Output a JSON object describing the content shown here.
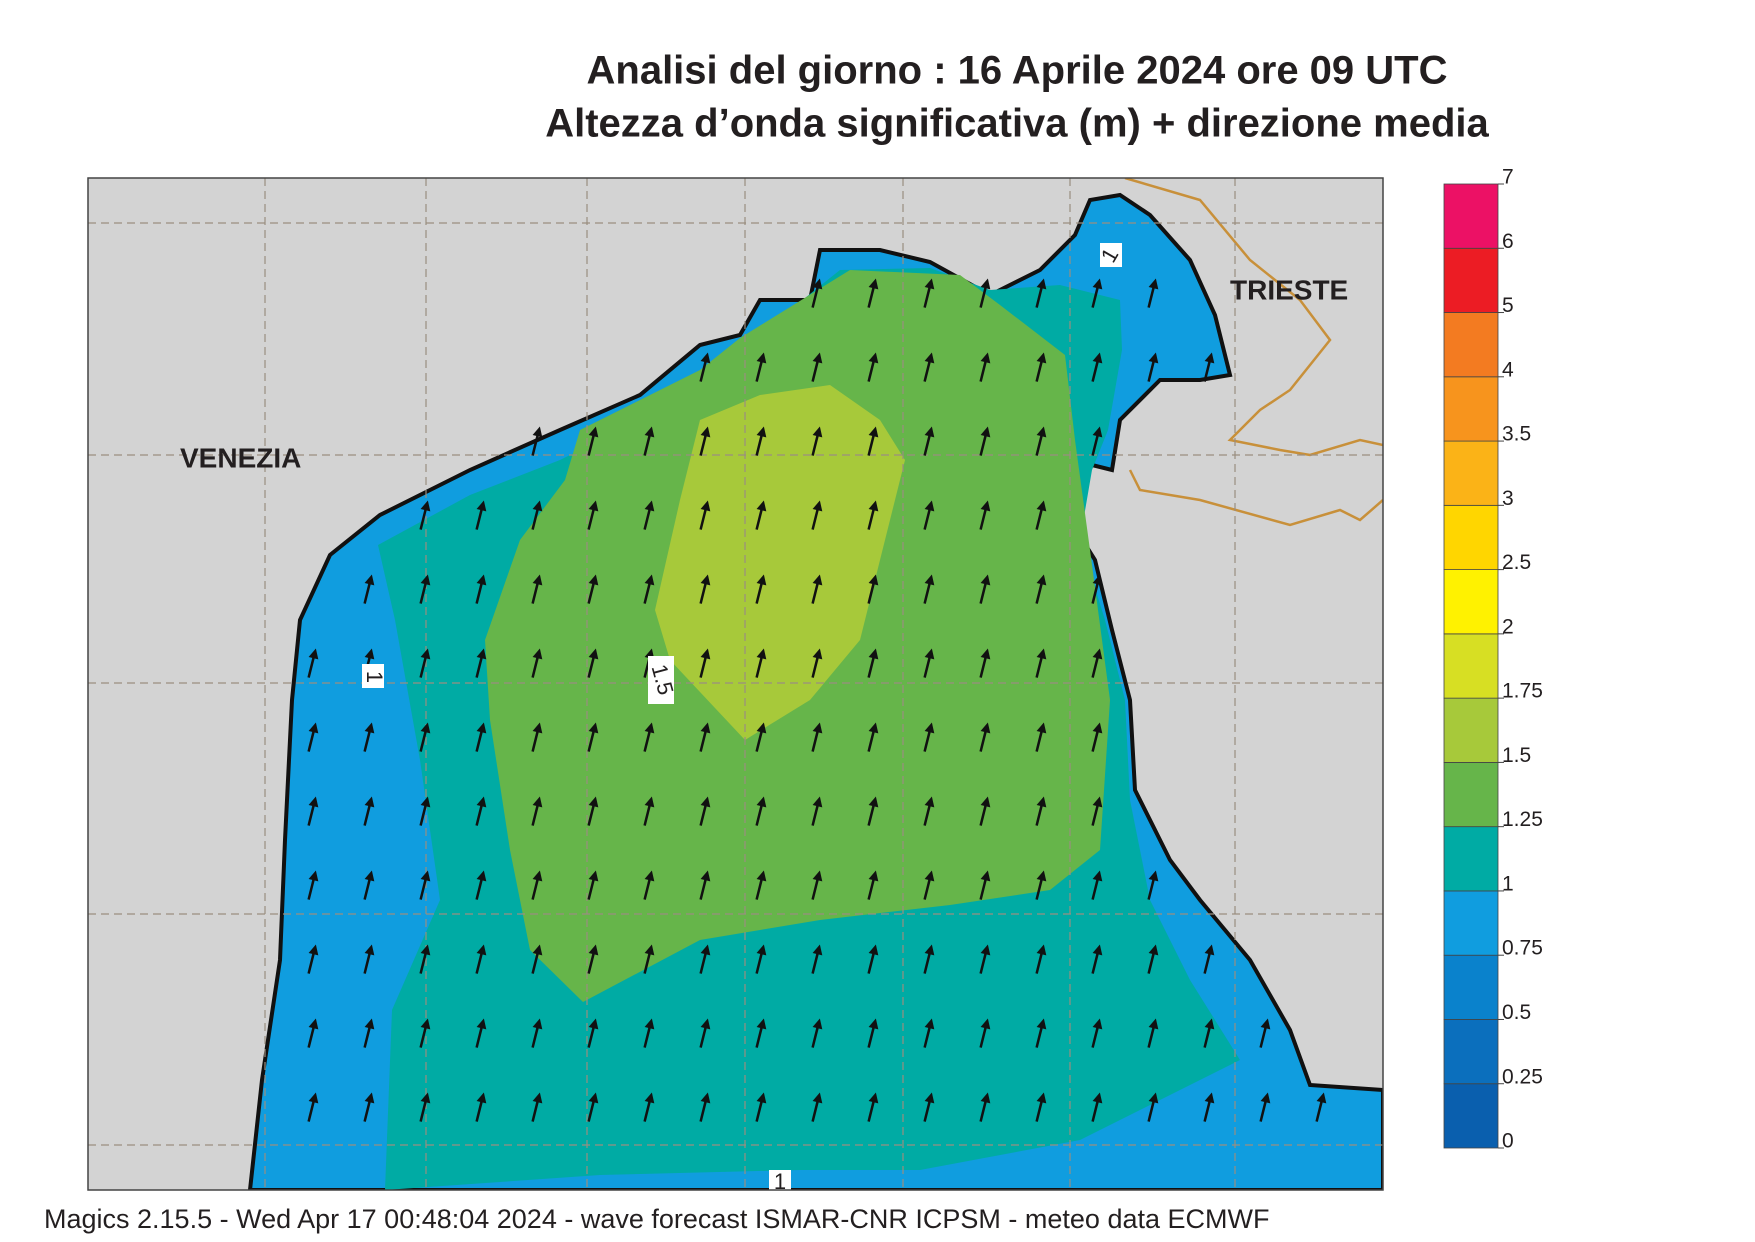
{
  "header": {
    "title": "Analisi del giorno :  16   Aprile  2024   ore 09 UTC",
    "subtitle": "Altezza d’onda significativa (m) + direzione media"
  },
  "map": {
    "places": [
      "VENEZIA",
      "TRIESTE"
    ],
    "contour_labels": [
      "1",
      "1.5",
      "1",
      "1"
    ]
  },
  "legend": {
    "levels": [
      0,
      0.25,
      0.5,
      0.75,
      1,
      1.25,
      1.5,
      1.75,
      2,
      2.5,
      3,
      3.5,
      4,
      5,
      6,
      7
    ],
    "colors": [
      "#0a5fae",
      "#0b6fbd",
      "#0a82cc",
      "#109ddf",
      "#00aba4",
      "#66b54a",
      "#a7c93a",
      "#d7df23",
      "#fff200",
      "#ffd600",
      "#fbb317",
      "#f7941d",
      "#f37b21",
      "#ec1c24",
      "#ec1165"
    ]
  },
  "footer": "Magics 2.15.5 - Wed Apr 17 00:48:04 2024 - wave forecast  ISMAR-CNR  ICPSM - meteo data   ECMWF"
}
